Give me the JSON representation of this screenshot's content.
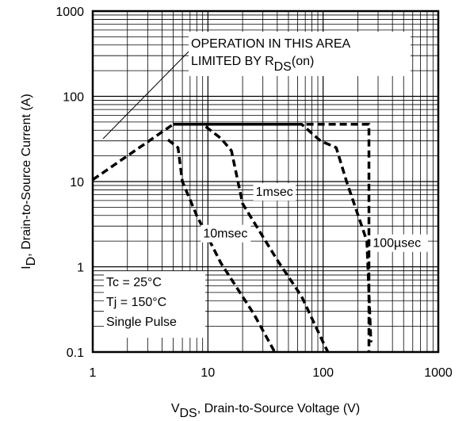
{
  "chart_data": {
    "type": "line",
    "x_scale": "log",
    "y_scale": "log",
    "xlim": [
      1,
      1000
    ],
    "ylim": [
      0.1,
      1000
    ],
    "x_ticks": [
      "1",
      "10",
      "100",
      "1000"
    ],
    "y_ticks": [
      "0.1",
      "1",
      "10",
      "100",
      "1000"
    ],
    "xlabel": {
      "main": "V",
      "sub": "DS",
      "rest": ", Drain-to-Source Voltage (V)"
    },
    "ylabel": {
      "main": "I",
      "sub": "D",
      "rest": ",  Drain-to-Source Current (A)"
    },
    "grid": true,
    "annotations": {
      "rds_line1": "OPERATION IN THIS AREA",
      "rds_line2_pre": "LIMITED BY R",
      "rds_line2_sub": "DS",
      "rds_line2_post": "(on)",
      "conditions": [
        "Tc = 25°C",
        "Tj = 150°C",
        "Single Pulse"
      ]
    },
    "series": [
      {
        "name": "100µsec",
        "label_at": [
          270,
          1.7
        ],
        "points": [
          [
            1,
            10.5
          ],
          [
            5,
            47
          ],
          [
            65,
            47
          ],
          [
            95,
            30
          ],
          [
            130,
            25
          ],
          [
            160,
            10
          ],
          [
            240,
            2
          ],
          [
            260,
            0.13
          ]
        ]
      },
      {
        "name": "1msec",
        "label_at": [
          26,
          6.8
        ],
        "points": [
          [
            5,
            47
          ],
          [
            9,
            47
          ],
          [
            13,
            32
          ],
          [
            16,
            23
          ],
          [
            20,
            5.5
          ],
          [
            40,
            1.2
          ],
          [
            65,
            0.45
          ],
          [
            100,
            0.13
          ],
          [
            110,
            0.1
          ]
        ]
      },
      {
        "name": "10msec",
        "label_at": [
          9.1,
          2.2
        ],
        "points": [
          [
            4.5,
            31
          ],
          [
            5.5,
            25
          ],
          [
            6,
            10
          ],
          [
            8,
            4
          ],
          [
            13,
            1.1
          ],
          [
            25,
            0.28
          ],
          [
            38,
            0.1
          ]
        ]
      },
      {
        "name": "",
        "points": [
          [
            5,
            47
          ],
          [
            250,
            47
          ],
          [
            250,
            0.1
          ]
        ]
      }
    ]
  }
}
